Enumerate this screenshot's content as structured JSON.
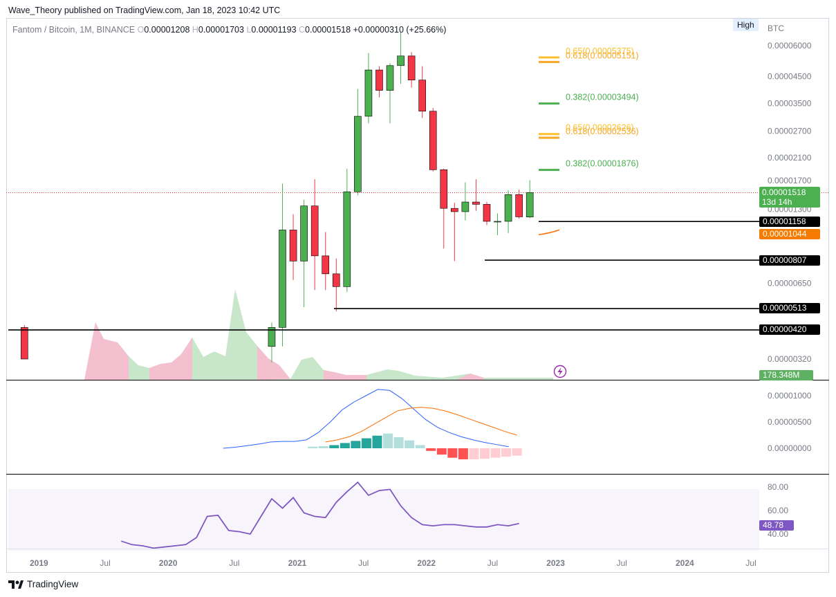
{
  "attribution": "Wave_Theory published on TradingView.com, Jan 18, 2023 10:42 UTC",
  "legend": {
    "symbol": "Fantom / Bitcoin, 1M, BINANCE",
    "o_label": "O",
    "o_value": "0.00001208",
    "h_label": "H",
    "h_value": "0.00001703",
    "l_label": "L",
    "l_value": "0.00001193",
    "c_label": "C",
    "c_value": "0.00001518",
    "change": "+0.00000310 (+25.66%)"
  },
  "high_badge": "High",
  "currency_label": "BTC",
  "price_tag": {
    "price": "0.00001518",
    "countdown": "13d 14h"
  },
  "level_tags": [
    "0.00001158",
    "0.00000807",
    "0.00000513",
    "0.00000420"
  ],
  "orange_tag": "0.00001044",
  "volume_tag": "178.348M",
  "rsi_tag": "48.78",
  "logo_text": "TradingView",
  "colors": {
    "up": "#4caf50",
    "down": "#f23645",
    "macd": "#2962ff",
    "signal": "#ff6d00",
    "rsi": "#7e57c2"
  },
  "icons": [
    "flash-icon",
    "tradingview-logo-icon"
  ],
  "chart_data": [
    {
      "type": "candlestick",
      "title": "Fantom / Bitcoin, 1M, BINANCE",
      "scale": "log",
      "x_ticks": [
        "2019",
        "Jul",
        "2020",
        "Jul",
        "2021",
        "Jul",
        "2022",
        "Jul",
        "2023",
        "Jul",
        "2024",
        "Jul"
      ],
      "y_ticks": [
        "0.00006000",
        "0.00004500",
        "0.00003500",
        "0.00002700",
        "0.00002100",
        "0.00001700",
        "0.00001300",
        "0.00000650",
        "0.00000320"
      ],
      "ylim": [
        3.2e-06,
        6e-05
      ],
      "candles": [
        {
          "t": "2019-02",
          "o": 4.3e-06,
          "h": 4.4e-06,
          "l": 3.2e-06,
          "c": 3.2e-06
        },
        {
          "t": "2021-01",
          "o": 3.6e-06,
          "h": 4.5e-06,
          "l": 3.1e-06,
          "c": 4.3e-06
        },
        {
          "t": "2021-02",
          "o": 4.3e-06,
          "h": 1.65e-05,
          "l": 3.6e-06,
          "c": 1.07e-05
        },
        {
          "t": "2021-03",
          "o": 1.07e-05,
          "h": 1.24e-05,
          "l": 6.7e-06,
          "c": 8e-06
        },
        {
          "t": "2021-04",
          "o": 8e-06,
          "h": 1.42e-05,
          "l": 5.2e-06,
          "c": 1.34e-05
        },
        {
          "t": "2021-05",
          "o": 1.34e-05,
          "h": 1.72e-05,
          "l": 6.1e-06,
          "c": 8.4e-06
        },
        {
          "t": "2021-06",
          "o": 8.4e-06,
          "h": 1.05e-05,
          "l": 6.1e-06,
          "c": 7.1e-06
        },
        {
          "t": "2021-07",
          "o": 7.1e-06,
          "h": 8.2e-06,
          "l": 5e-06,
          "c": 6.3e-06
        },
        {
          "t": "2021-08",
          "o": 6.3e-06,
          "h": 1.9e-05,
          "l": 6e-06,
          "c": 1.53e-05
        },
        {
          "t": "2021-09",
          "o": 1.53e-05,
          "h": 4e-05,
          "l": 1.48e-05,
          "c": 3.1e-05
        },
        {
          "t": "2021-10",
          "o": 3.1e-05,
          "h": 5.6e-05,
          "l": 2.9e-05,
          "c": 4.78e-05
        },
        {
          "t": "2021-11",
          "o": 4.78e-05,
          "h": 4.95e-05,
          "l": 3.7e-05,
          "c": 3.95e-05
        },
        {
          "t": "2021-12",
          "o": 3.95e-05,
          "h": 5.1e-05,
          "l": 2.9e-05,
          "c": 4.98e-05
        },
        {
          "t": "2022-01",
          "o": 4.98e-05,
          "h": 6.8e-05,
          "l": 4.2e-05,
          "c": 5.45e-05
        },
        {
          "t": "2022-02",
          "o": 5.45e-05,
          "h": 5.65e-05,
          "l": 4.05e-05,
          "c": 4.35e-05
        },
        {
          "t": "2022-03",
          "o": 4.35e-05,
          "h": 4.95e-05,
          "l": 3.05e-05,
          "c": 3.25e-05
        },
        {
          "t": "2022-04",
          "o": 3.25e-05,
          "h": 3.35e-05,
          "l": 1.85e-05,
          "c": 1.88e-05
        },
        {
          "t": "2022-05",
          "o": 1.88e-05,
          "h": 1.9e-05,
          "l": 9e-06,
          "c": 1.31e-05
        },
        {
          "t": "2022-06",
          "o": 1.31e-05,
          "h": 1.38e-05,
          "l": 8e-06,
          "c": 1.27e-05
        },
        {
          "t": "2022-07",
          "o": 1.27e-05,
          "h": 1.67e-05,
          "l": 1.17e-05,
          "c": 1.39e-05
        },
        {
          "t": "2022-08",
          "o": 1.39e-05,
          "h": 1.72e-05,
          "l": 1.28e-05,
          "c": 1.36e-05
        },
        {
          "t": "2022-09",
          "o": 1.36e-05,
          "h": 1.39e-05,
          "l": 1.12e-05,
          "c": 1.16e-05
        },
        {
          "t": "2022-10",
          "o": 1.16e-05,
          "h": 1.25e-05,
          "l": 1.02e-05,
          "c": 1.16e-05
        },
        {
          "t": "2022-11",
          "o": 1.16e-05,
          "h": 1.55e-05,
          "l": 1.04e-05,
          "c": 1.49e-05
        },
        {
          "t": "2022-12",
          "o": 1.49e-05,
          "h": 1.56e-05,
          "l": 1.19e-05,
          "c": 1.21e-05
        },
        {
          "t": "2023-01",
          "o": 1.208e-05,
          "h": 1.703e-05,
          "l": 1.193e-05,
          "c": 1.518e-05
        }
      ],
      "fib_levels": [
        {
          "label": "0.65(0.00005375)",
          "value": 5.375e-05,
          "color": "#fbc02d"
        },
        {
          "label": "0.618(0.00005151)",
          "value": 5.151e-05,
          "color": "#f9a825"
        },
        {
          "label": "0.382(0.00003494)",
          "value": 3.494e-05,
          "color": "#4caf50"
        },
        {
          "label": "0.65(0.00002626)",
          "value": 2.626e-05,
          "color": "#fbc02d"
        },
        {
          "label": "0.618(0.00002536)",
          "value": 2.536e-05,
          "color": "#f9a825"
        },
        {
          "label": "0.382(0.00001876)",
          "value": 1.876e-05,
          "color": "#4caf50"
        }
      ],
      "support_levels": [
        1.158e-05,
        8.07e-06,
        5.13e-06,
        4.2e-06
      ],
      "moving_average_value": 1.044e-05
    },
    {
      "type": "area",
      "title": "Volume",
      "last_value": "178.348M"
    },
    {
      "type": "macd",
      "y_ticks": [
        "0.00001000",
        "0.00000500",
        "0.00000000"
      ],
      "macd_line": [
        0.0,
        2e-07,
        5e-07,
        8e-07,
        1.2e-06,
        1.3e-06,
        1.3e-06,
        1.6e-06,
        3e-06,
        5e-06,
        7.3e-06,
        8.8e-06,
        1e-05,
        1.12e-05,
        1.1e-05,
        9.5e-06,
        7.5e-06,
        5.5e-06,
        4e-06,
        3e-06,
        2.2e-06,
        1.6e-06,
        1.1e-06,
        7e-07,
        3e-07
      ],
      "signal_line": [
        1.2e-06,
        1.6e-06,
        2.2e-06,
        3.2e-06,
        4.5e-06,
        5.8e-06,
        7.1e-06,
        7.6e-06,
        7.8e-06,
        7.6e-06,
        7.1e-06,
        6.4e-06,
        5.6e-06,
        4.8e-06,
        4e-06,
        3.2e-06,
        2.5e-06
      ],
      "histogram": [
        3e-07,
        4e-07,
        6e-07,
        1e-06,
        1.4e-06,
        1.9e-06,
        2.4e-06,
        2.8e-06,
        2.1e-06,
        1.5e-06,
        6e-07,
        -5e-07,
        -1.2e-06,
        -1.8e-06,
        -2.1e-06,
        -2.1e-06,
        -2e-06,
        -1.8e-06,
        -1.6e-06,
        -1.4e-06
      ]
    },
    {
      "type": "line",
      "title": "RSI",
      "y_ticks": [
        "80.00",
        "60.00",
        "40.00"
      ],
      "band": [
        30,
        70
      ],
      "values": [
        34,
        31,
        30,
        28,
        29,
        30,
        31,
        37,
        55,
        56,
        43,
        42,
        40,
        55,
        70,
        62,
        71,
        58,
        55,
        54,
        67,
        76,
        84,
        73,
        77,
        78,
        64,
        54,
        48,
        47,
        48,
        48,
        47,
        46,
        46,
        48,
        47,
        49
      ]
    }
  ]
}
